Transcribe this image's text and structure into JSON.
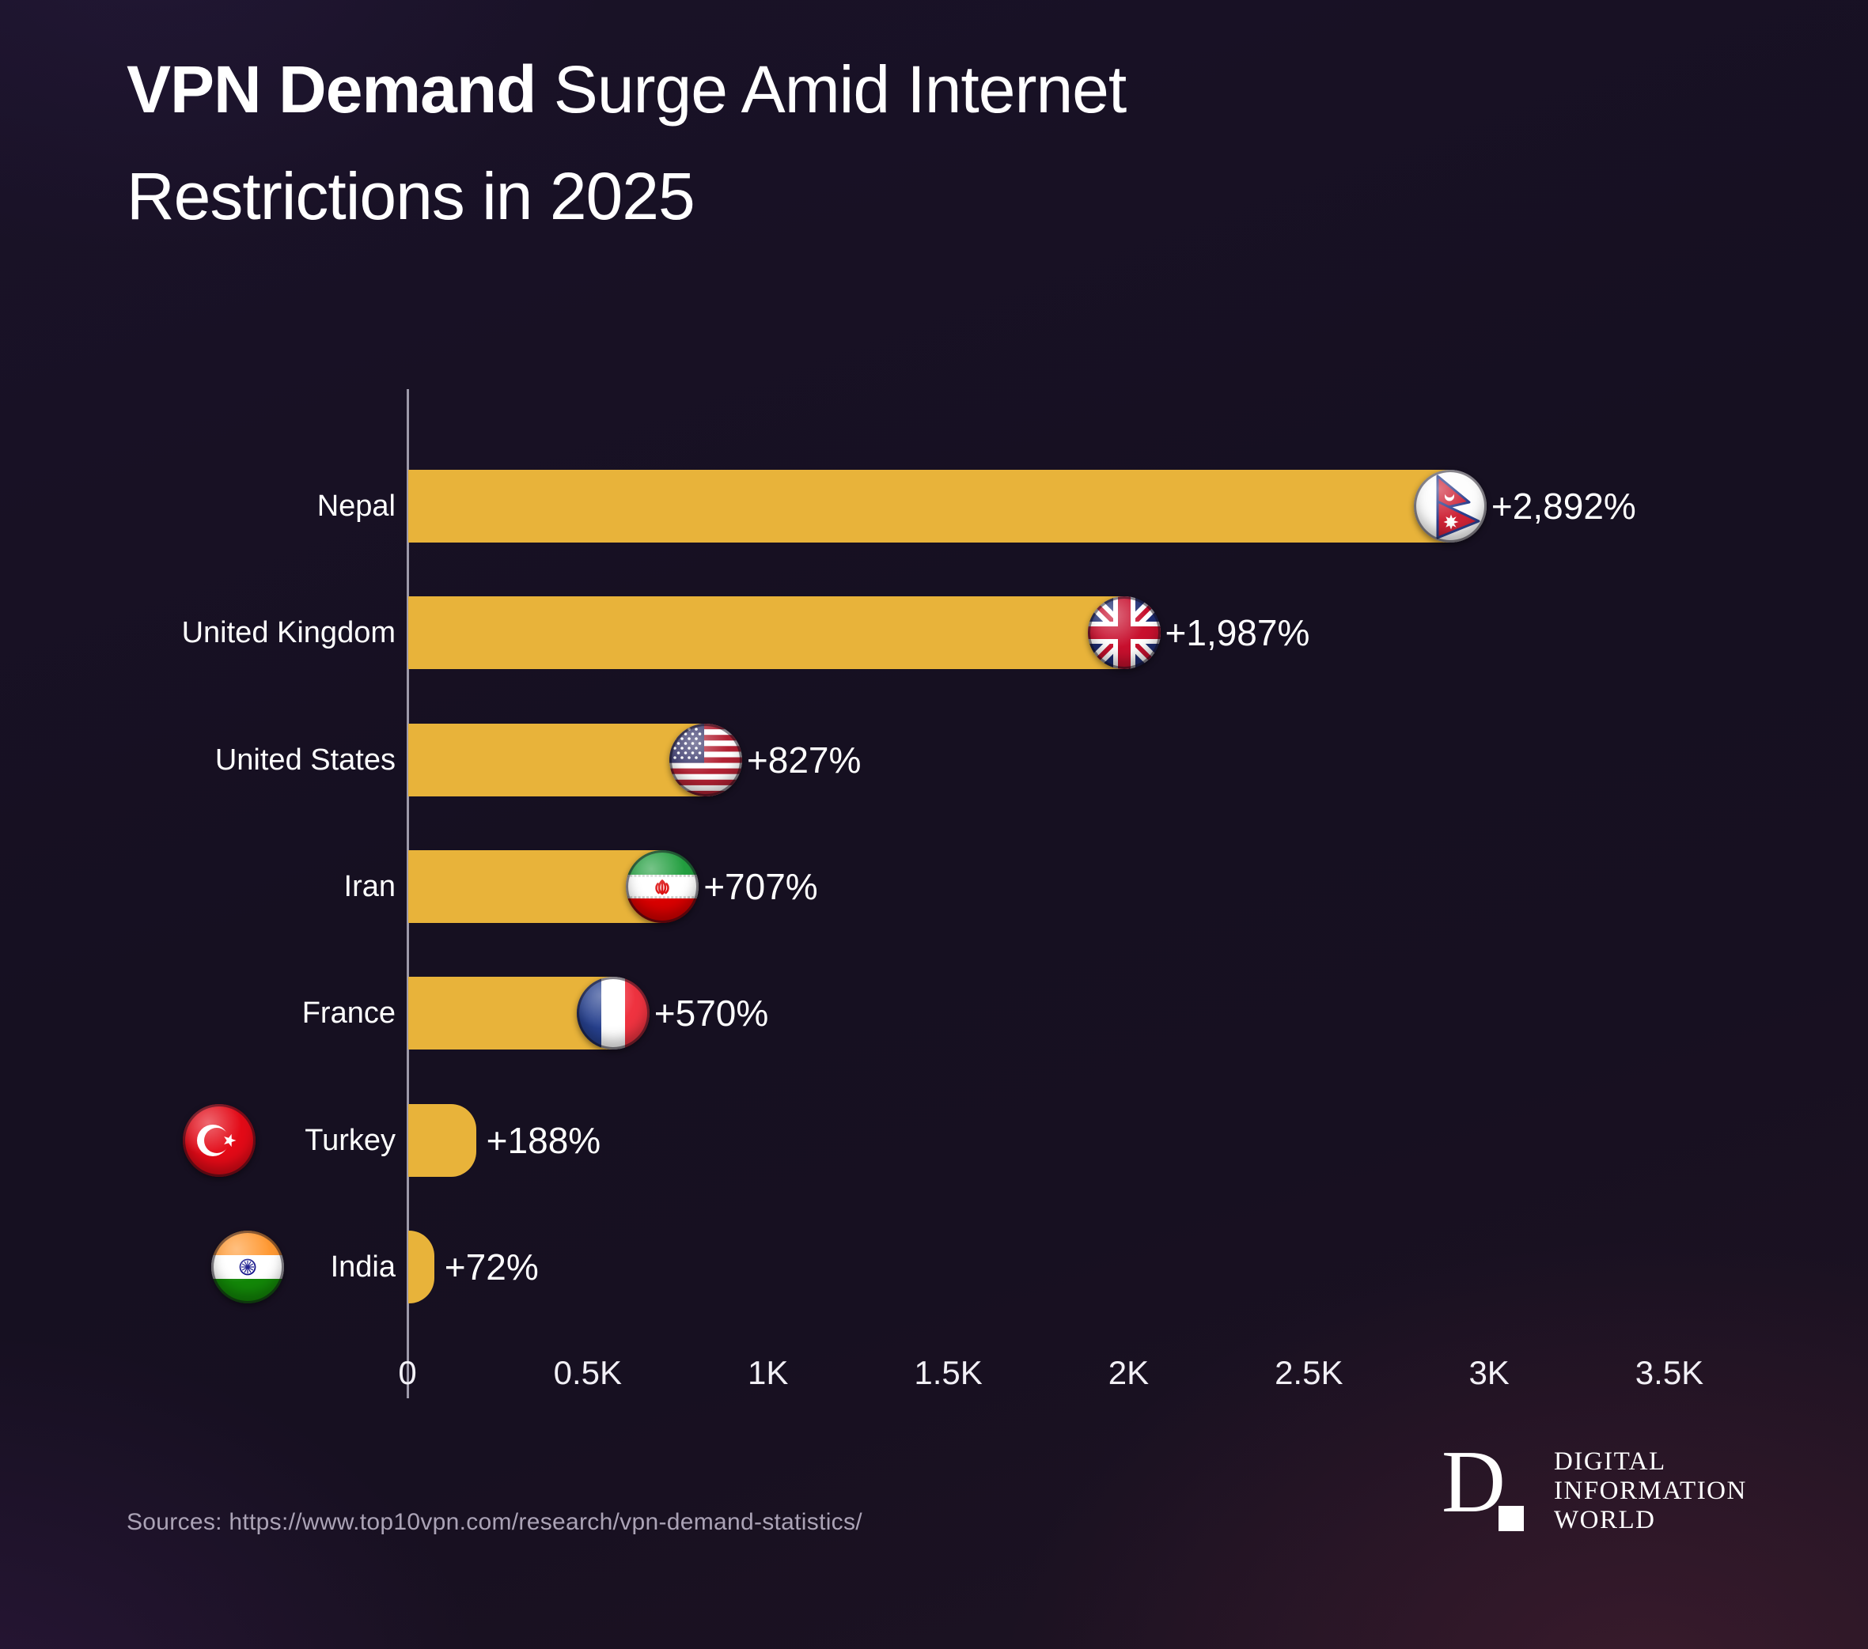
{
  "title": {
    "highlight": "VPN Demand",
    "line1_rest": " Surge Amid Internet",
    "line2": "Restrictions in 2025"
  },
  "chart_data": {
    "type": "bar",
    "orientation": "horizontal",
    "title": "VPN Demand Surge Amid Internet Restrictions in 2025",
    "categories": [
      "Nepal",
      "United Kingdom",
      "United States",
      "Iran",
      "France",
      "Turkey",
      "India"
    ],
    "values": [
      2892,
      1987,
      827,
      707,
      570,
      188,
      72
    ],
    "value_labels": [
      "+2,892%",
      "+1,987%",
      "+827%",
      "+707%",
      "+570%",
      "+188%",
      "+72%"
    ],
    "x_ticks": [
      "0",
      "0.5K",
      "1K",
      "1.5K",
      "2K",
      "2.5K",
      "3K",
      "3.5K"
    ],
    "x_tick_values": [
      0,
      500,
      1000,
      1500,
      2000,
      2500,
      3000,
      3500
    ],
    "xlim": [
      0,
      3500
    ],
    "grid": false,
    "legend": false,
    "bar_color": "#E8B33A",
    "flag_icons": [
      "nepal-flag-icon",
      "uk-flag-icon",
      "us-flag-icon",
      "iran-flag-icon",
      "france-flag-icon",
      "turkey-flag-icon",
      "india-flag-icon"
    ],
    "flag_placement": [
      "bar-end",
      "bar-end",
      "bar-end",
      "bar-end",
      "bar-end",
      "left-of-label",
      "left-of-label"
    ]
  },
  "source": "Sources: https://www.top10vpn.com/research/vpn-demand-statistics/",
  "logo": {
    "monogram": "D",
    "lines": [
      "DIGITAL",
      "INFORMATION",
      "WORLD"
    ]
  },
  "colors": {
    "accent_gold": "#E8B33A",
    "background_base": "#161021",
    "text_primary": "#FFFFFF",
    "text_muted": "#ABA3B6",
    "axis_line": "#9D99A9"
  }
}
